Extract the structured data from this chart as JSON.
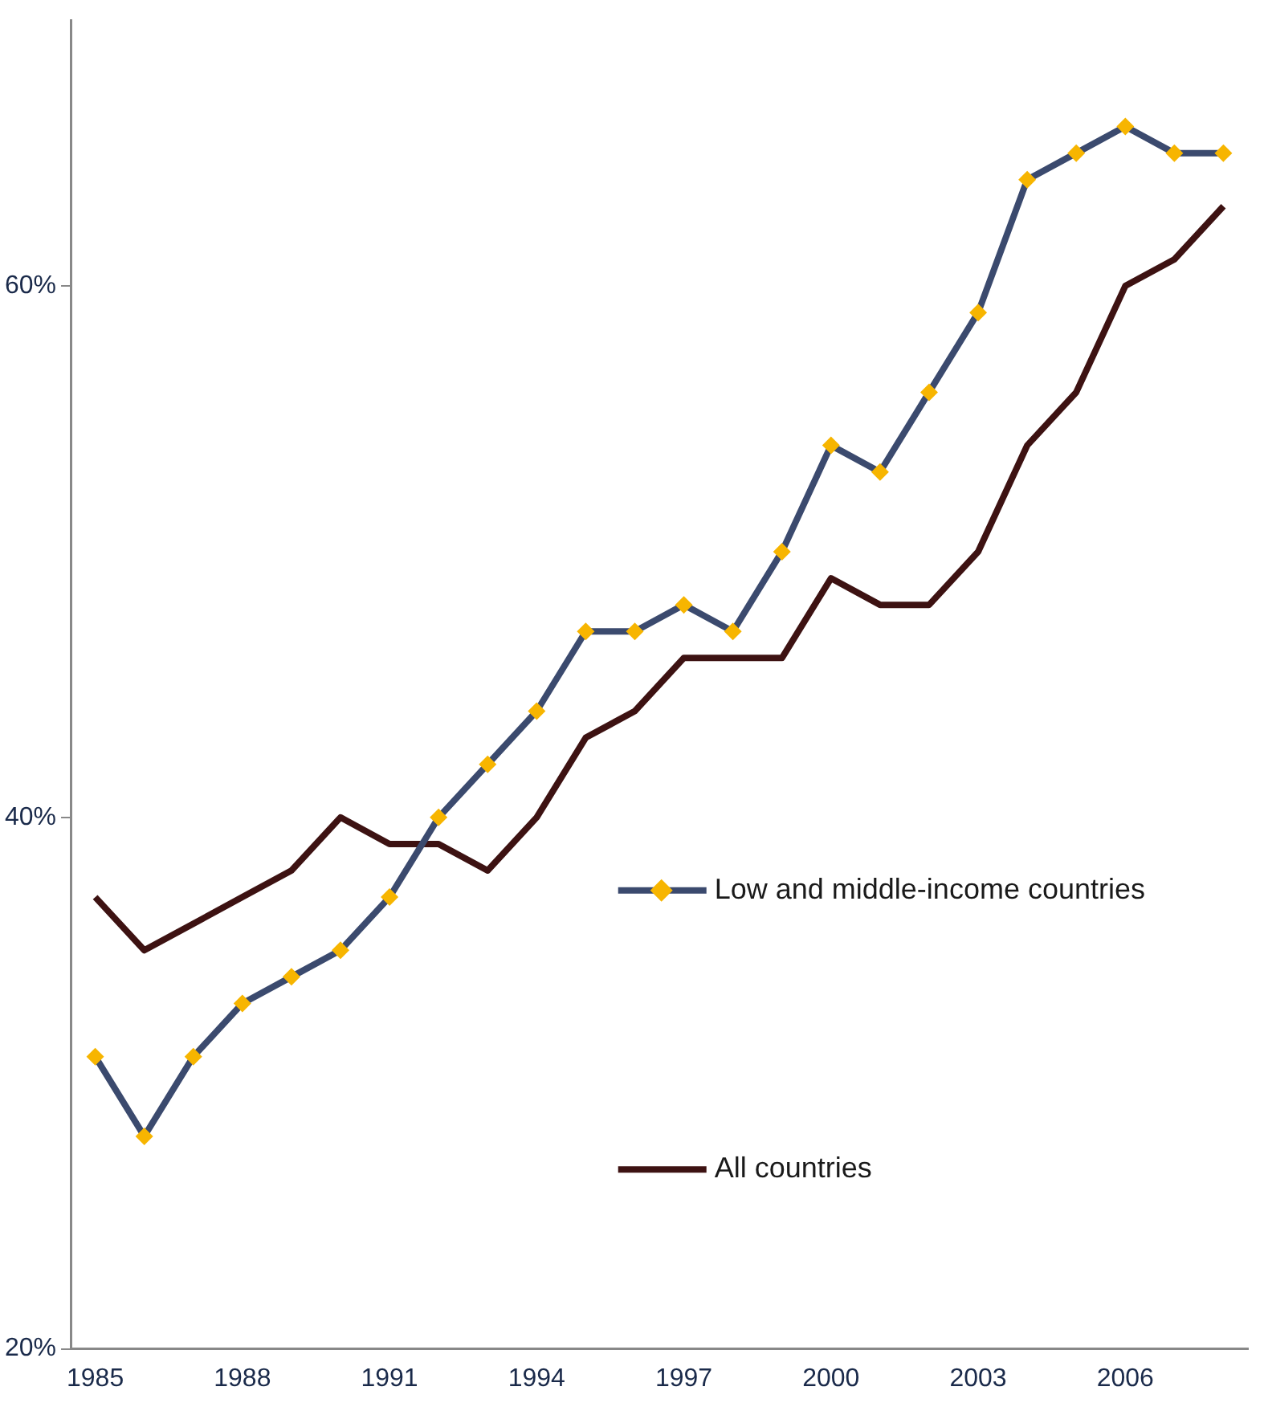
{
  "chart_data": {
    "type": "line",
    "categories": [
      "1985",
      null,
      null,
      "1988",
      null,
      null,
      "1991",
      null,
      null,
      "1994",
      null,
      null,
      "1997",
      null,
      null,
      "2000",
      null,
      null,
      "2003",
      null,
      null,
      "2006",
      null,
      null
    ],
    "ylim": [
      20,
      70
    ],
    "yticks": [
      {
        "value": 20,
        "label": "20%"
      },
      {
        "value": 40,
        "label": "40%"
      },
      {
        "value": 60,
        "label": "60%"
      }
    ],
    "grid": false,
    "legend": "right",
    "series": [
      {
        "name": "Low and middle-income countries",
        "color": "#3b4a6e",
        "marker": "diamond",
        "colors": [
          "#f7b500",
          "#f7b500",
          "#f7b500",
          "#f7b500",
          "#f7b500",
          "#f7b500",
          "#f7b500",
          "#f7b500",
          "#f7b500",
          "#f7b500",
          "#f7b500",
          "#f7b500",
          "#f7b500",
          "#f7b500",
          "#f7b500",
          "#f7b500",
          "#f7b500",
          "#f7b500",
          "#f7b500",
          "#f7b500",
          "#f7b500",
          "#f7b500",
          "#f7b500",
          "#f7b500"
        ],
        "values": [
          31,
          28,
          31,
          33,
          34,
          35,
          37,
          40,
          42,
          44,
          47,
          47,
          48,
          47,
          50,
          54,
          53,
          56,
          59,
          64,
          65,
          66,
          65,
          65
        ]
      },
      {
        "name": "All countries",
        "color": "#3d1212",
        "marker": "none",
        "values": [
          37,
          35,
          36,
          37,
          38,
          40,
          39,
          39,
          38,
          40,
          43,
          44,
          46,
          46,
          46,
          49,
          48,
          48,
          50,
          54,
          56,
          60,
          61,
          63
        ]
      }
    ]
  }
}
